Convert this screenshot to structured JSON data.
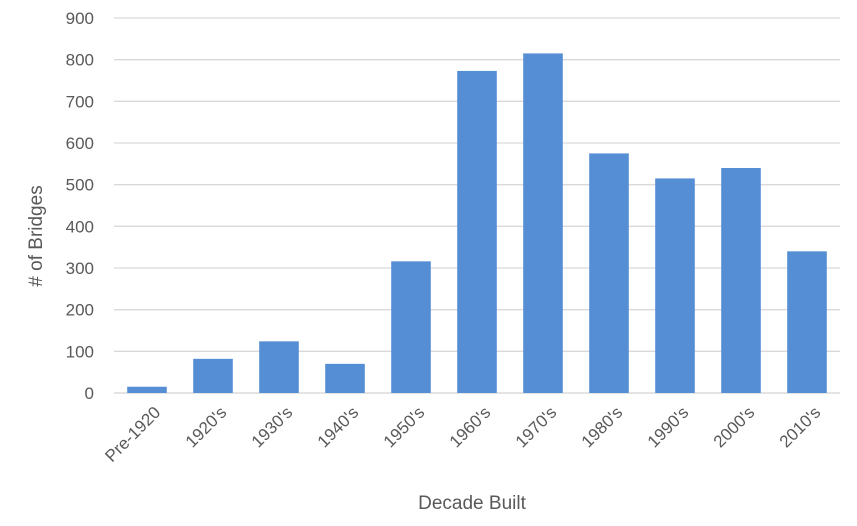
{
  "chart_data": {
    "type": "bar",
    "title": "",
    "xlabel": "Decade Built",
    "ylabel": "# of Bridges",
    "categories": [
      "Pre-1920",
      "1920's",
      "1930's",
      "1940's",
      "1950's",
      "1960's",
      "1970's",
      "1980's",
      "1990's",
      "2000's",
      "2010's"
    ],
    "values": [
      15,
      82,
      124,
      70,
      316,
      773,
      815,
      575,
      515,
      540,
      340
    ],
    "ylim": [
      0,
      900
    ],
    "yticks": [
      0,
      100,
      200,
      300,
      400,
      500,
      600,
      700,
      800,
      900
    ],
    "grid": true,
    "legend": "none",
    "bar_color": "#558ED5",
    "gridline_color": "#D9D9D9",
    "text_color": "#595959"
  }
}
